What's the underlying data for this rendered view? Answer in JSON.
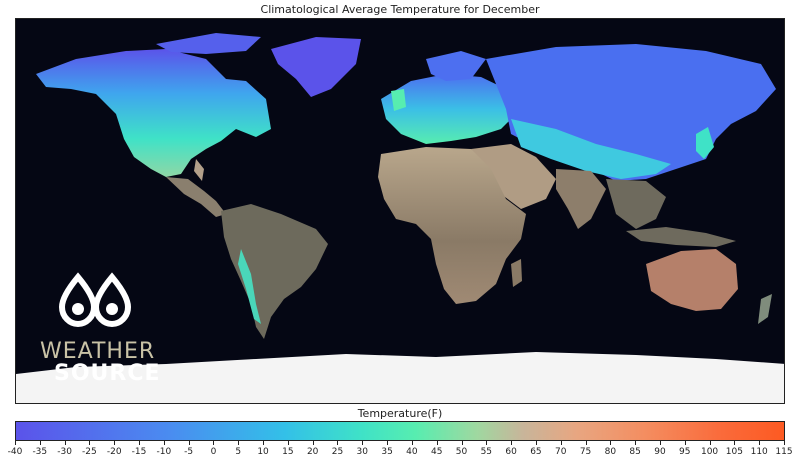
{
  "title": "Climatological Average Temperature for December",
  "logo": {
    "line1": "WEATHER",
    "line2": "SOURCE",
    "icon": "weather-source-logo-icon"
  },
  "colorbar": {
    "label": "Temperature(F)",
    "min": -40,
    "max": 115,
    "ticks": [
      "-40",
      "-35",
      "-30",
      "-25",
      "-20",
      "-15",
      "-10",
      "-5",
      "0",
      "5",
      "10",
      "15",
      "20",
      "25",
      "30",
      "35",
      "40",
      "45",
      "50",
      "55",
      "60",
      "65",
      "70",
      "75",
      "80",
      "85",
      "90",
      "95",
      "100",
      "105",
      "110",
      "115"
    ]
  },
  "colors": {
    "ocean": "#050714",
    "coldest": "#5b53ea",
    "cold": "#33c0e8",
    "mild": "#57edb0",
    "warm": "#c8b59a",
    "hottest": "#fd5a22",
    "antarctica": "#f4f4f4"
  }
}
